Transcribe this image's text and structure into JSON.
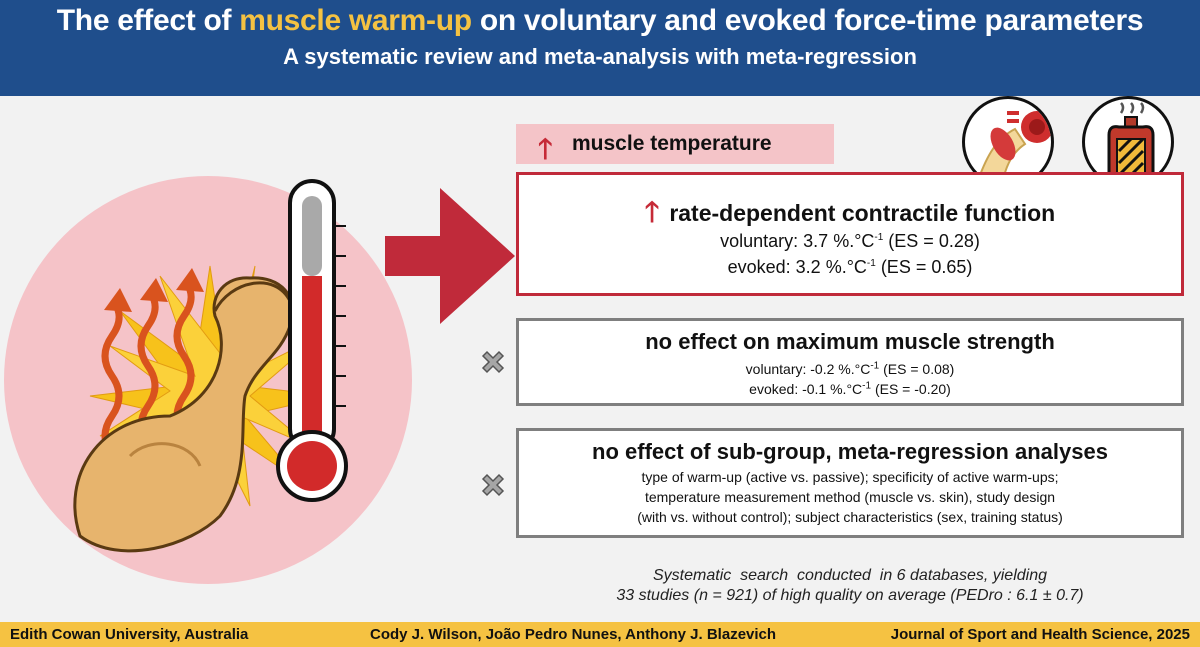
{
  "header": {
    "title_pre": "The effect of ",
    "title_highlight": "muscle warm-up",
    "title_post": " on voluntary and evoked force-time parameters",
    "subtitle": "A systematic review and meta-analysis with meta-regression"
  },
  "colors": {
    "header_bg": "#1f4e8c",
    "highlight": "#f5c242",
    "accent_red": "#c02a3a",
    "gray_border": "#7f7f7f",
    "pink": "#f4c4c8"
  },
  "temperature_banner": {
    "arrow": "🡑",
    "label": "muscle temperature"
  },
  "icons": [
    "muscle-warmup-illustration-icon",
    "thermometer-icon",
    "right-arrow-icon",
    "elbow-muscle-icon",
    "hot-water-bottle-icon",
    "x-mark-icon"
  ],
  "contractile_box": {
    "arrow": "🡑",
    "heading": "rate-dependent contractile function",
    "voluntary_pre": "voluntary: 3.7 %.°C",
    "voluntary_sup": "-1",
    "voluntary_post": " (ES = 0.28)",
    "evoked_pre": "evoked:  3.2 %.°C",
    "evoked_sup": "-1",
    "evoked_post": " (ES = 0.65)"
  },
  "strength_box": {
    "heading": "no effect on maximum muscle strength",
    "voluntary_pre": "voluntary:  -0.2 %.°C",
    "voluntary_sup": "-1",
    "voluntary_post": " (ES = 0.08)",
    "evoked_pre": "evoked:  -0.1 %.°C",
    "evoked_sup": "-1",
    "evoked_post": " (ES = -0.20)"
  },
  "subgroup_box": {
    "heading": "no effect of sub-group, meta-regression analyses",
    "line1": "type of warm-up (active vs. passive); specificity of active warm-ups;",
    "line2": "temperature measurement method (muscle vs. skin), study design",
    "line3": "(with vs. without control); subject characteristics (sex, training status)"
  },
  "search": {
    "line1": "Systematic  search  conducted  in 6 databases, yielding",
    "line2": "33 studies (n = 921) of high quality on average (PEDro : 6.1 ± 0.7)"
  },
  "footer": {
    "university": "Edith Cowan University, Australia",
    "authors": "Cody J. Wilson, João Pedro Nunes, Anthony J. Blazevich",
    "journal": "Journal of Sport and Health Science, 2025"
  }
}
